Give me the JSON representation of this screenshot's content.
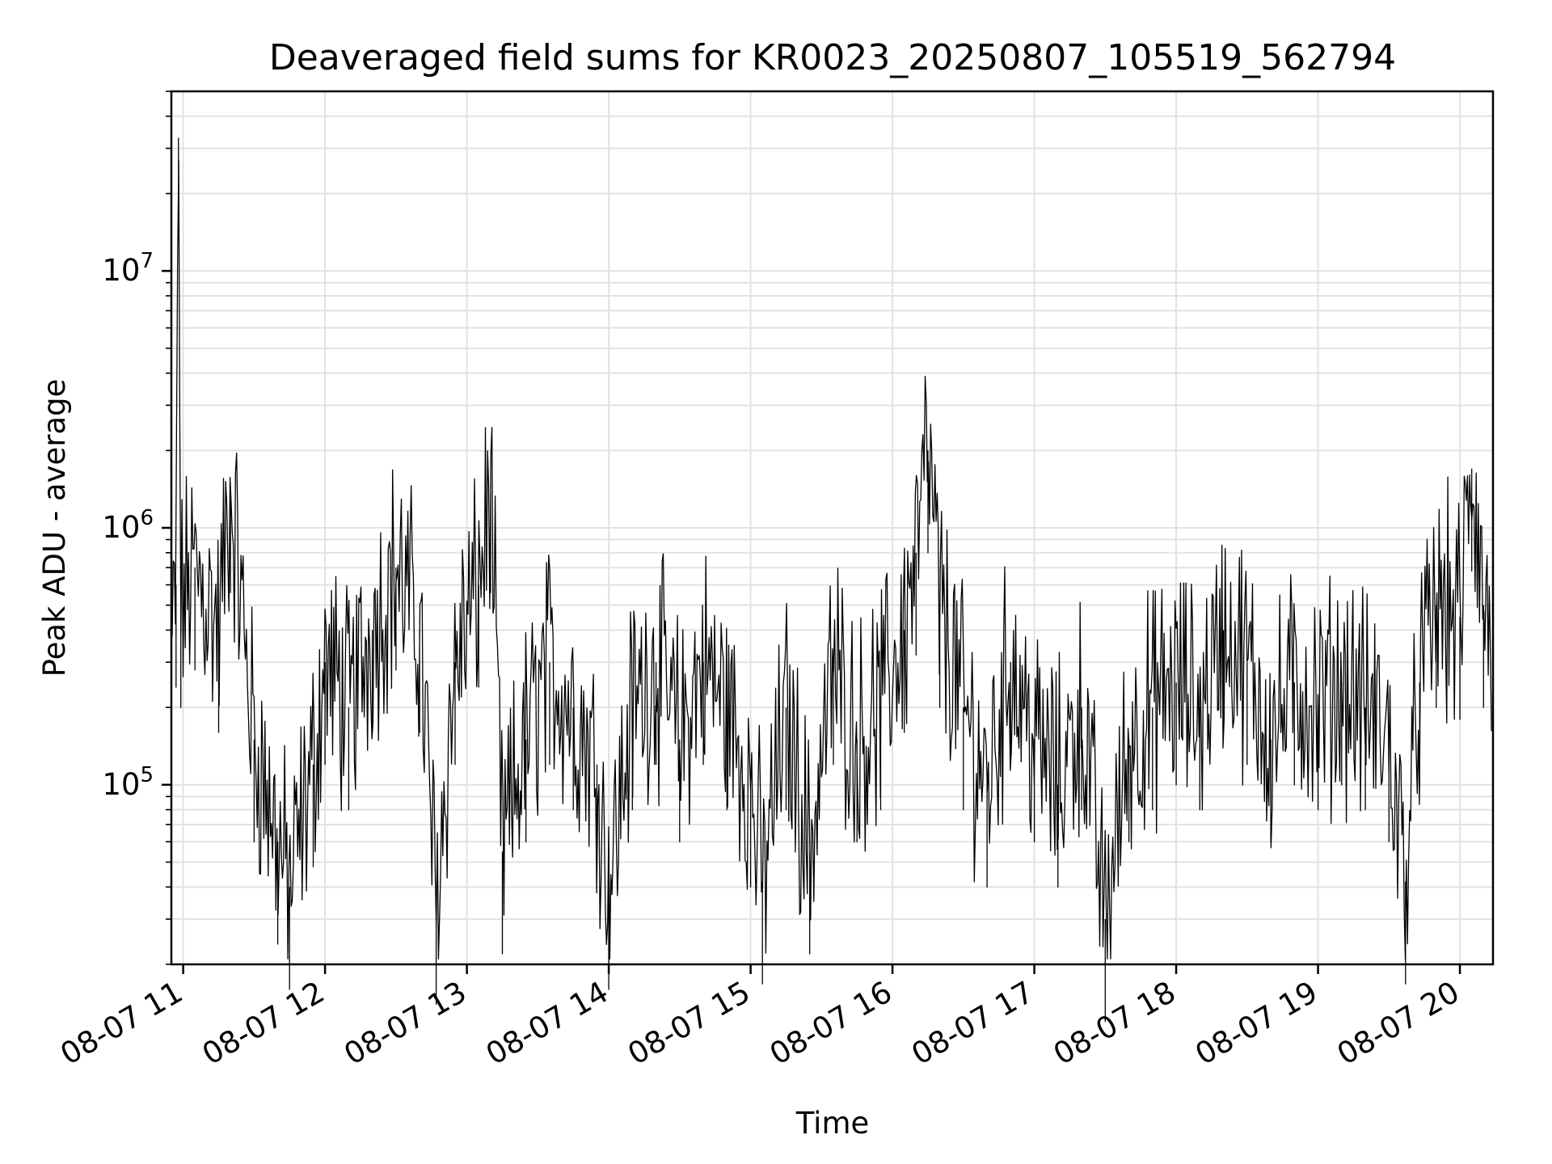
{
  "chart_data": {
    "type": "line",
    "title": "Deaveraged field sums for KR0023_20250807_105519_562794",
    "xlabel": "Time",
    "ylabel": "Peak ADU - average",
    "y_scale": "log",
    "ylim": [
      20000,
      50000000
    ],
    "xlim": [
      "2025-08-07 10:55",
      "2025-08-07 20:14"
    ],
    "grid": true,
    "x_ticks": [
      "08-07 11",
      "08-07 12",
      "08-07 13",
      "08-07 14",
      "08-07 15",
      "08-07 16",
      "08-07 17",
      "08-07 18",
      "08-07 19",
      "08-07 20"
    ],
    "y_ticks": [
      {
        "value": 100000,
        "base": "10",
        "exp": "5"
      },
      {
        "value": 1000000,
        "base": "10",
        "exp": "6"
      },
      {
        "value": 10000000,
        "base": "10",
        "exp": "7"
      }
    ],
    "series": [
      {
        "color": "#000000",
        "points": [
          [
            "2025-08-07 10:55",
            300000
          ],
          [
            "2025-08-07 10:57",
            600000
          ],
          [
            "2025-08-07 10:58",
            33000000
          ],
          [
            "2025-08-07 10:59",
            500000
          ],
          [
            "2025-08-07 11:05",
            700000
          ],
          [
            "2025-08-07 11:15",
            400000
          ],
          [
            "2025-08-07 11:20",
            1400000
          ],
          [
            "2025-08-07 11:30",
            150000
          ],
          [
            "2025-08-07 11:40",
            60000
          ],
          [
            "2025-08-07 11:45",
            40000
          ],
          [
            "2025-08-07 11:55",
            120000
          ],
          [
            "2025-08-07 12:00",
            300000
          ],
          [
            "2025-08-07 12:10",
            200000
          ],
          [
            "2025-08-07 12:20",
            400000
          ],
          [
            "2025-08-07 12:30",
            700000
          ],
          [
            "2025-08-07 12:40",
            400000
          ],
          [
            "2025-08-07 12:47",
            35000
          ],
          [
            "2025-08-07 12:55",
            300000
          ],
          [
            "2025-08-07 13:05",
            600000
          ],
          [
            "2025-08-07 13:10",
            1400000
          ],
          [
            "2025-08-07 13:15",
            55000
          ],
          [
            "2025-08-07 13:25",
            150000
          ],
          [
            "2025-08-07 13:35",
            300000
          ],
          [
            "2025-08-07 13:45",
            200000
          ],
          [
            "2025-08-07 13:55",
            120000
          ],
          [
            "2025-08-07 14:00",
            40000
          ],
          [
            "2025-08-07 14:10",
            200000
          ],
          [
            "2025-08-07 14:20",
            300000
          ],
          [
            "2025-08-07 14:30",
            150000
          ],
          [
            "2025-08-07 14:40",
            300000
          ],
          [
            "2025-08-07 14:50",
            200000
          ],
          [
            "2025-08-07 15:00",
            100000
          ],
          [
            "2025-08-07 15:05",
            42000
          ],
          [
            "2025-08-07 15:15",
            200000
          ],
          [
            "2025-08-07 15:25",
            55000
          ],
          [
            "2025-08-07 15:35",
            300000
          ],
          [
            "2025-08-07 15:45",
            150000
          ],
          [
            "2025-08-07 15:55",
            200000
          ],
          [
            "2025-08-07 16:05",
            400000
          ],
          [
            "2025-08-07 16:10",
            800000
          ],
          [
            "2025-08-07 16:15",
            2000000
          ],
          [
            "2025-08-07 16:20",
            500000
          ],
          [
            "2025-08-07 16:30",
            200000
          ],
          [
            "2025-08-07 16:40",
            100000
          ],
          [
            "2025-08-07 16:50",
            300000
          ],
          [
            "2025-08-07 17:00",
            150000
          ],
          [
            "2025-08-07 17:10",
            100000
          ],
          [
            "2025-08-07 17:20",
            200000
          ],
          [
            "2025-08-07 17:30",
            30000
          ],
          [
            "2025-08-07 17:40",
            150000
          ],
          [
            "2025-08-07 17:50",
            200000
          ],
          [
            "2025-08-07 18:00",
            250000
          ],
          [
            "2025-08-07 18:10",
            200000
          ],
          [
            "2025-08-07 18:20",
            400000
          ],
          [
            "2025-08-07 18:30",
            300000
          ],
          [
            "2025-08-07 18:40",
            150000
          ],
          [
            "2025-08-07 18:50",
            250000
          ],
          [
            "2025-08-07 19:00",
            200000
          ],
          [
            "2025-08-07 19:10",
            250000
          ],
          [
            "2025-08-07 19:20",
            200000
          ],
          [
            "2025-08-07 19:30",
            150000
          ],
          [
            "2025-08-07 19:37",
            42000
          ],
          [
            "2025-08-07 19:43",
            250000
          ],
          [
            "2025-08-07 19:50",
            500000
          ],
          [
            "2025-08-07 20:00",
            450000
          ],
          [
            "2025-08-07 20:05",
            1700000
          ],
          [
            "2025-08-07 20:10",
            500000
          ],
          [
            "2025-08-07 20:14",
            350000
          ]
        ]
      }
    ]
  }
}
